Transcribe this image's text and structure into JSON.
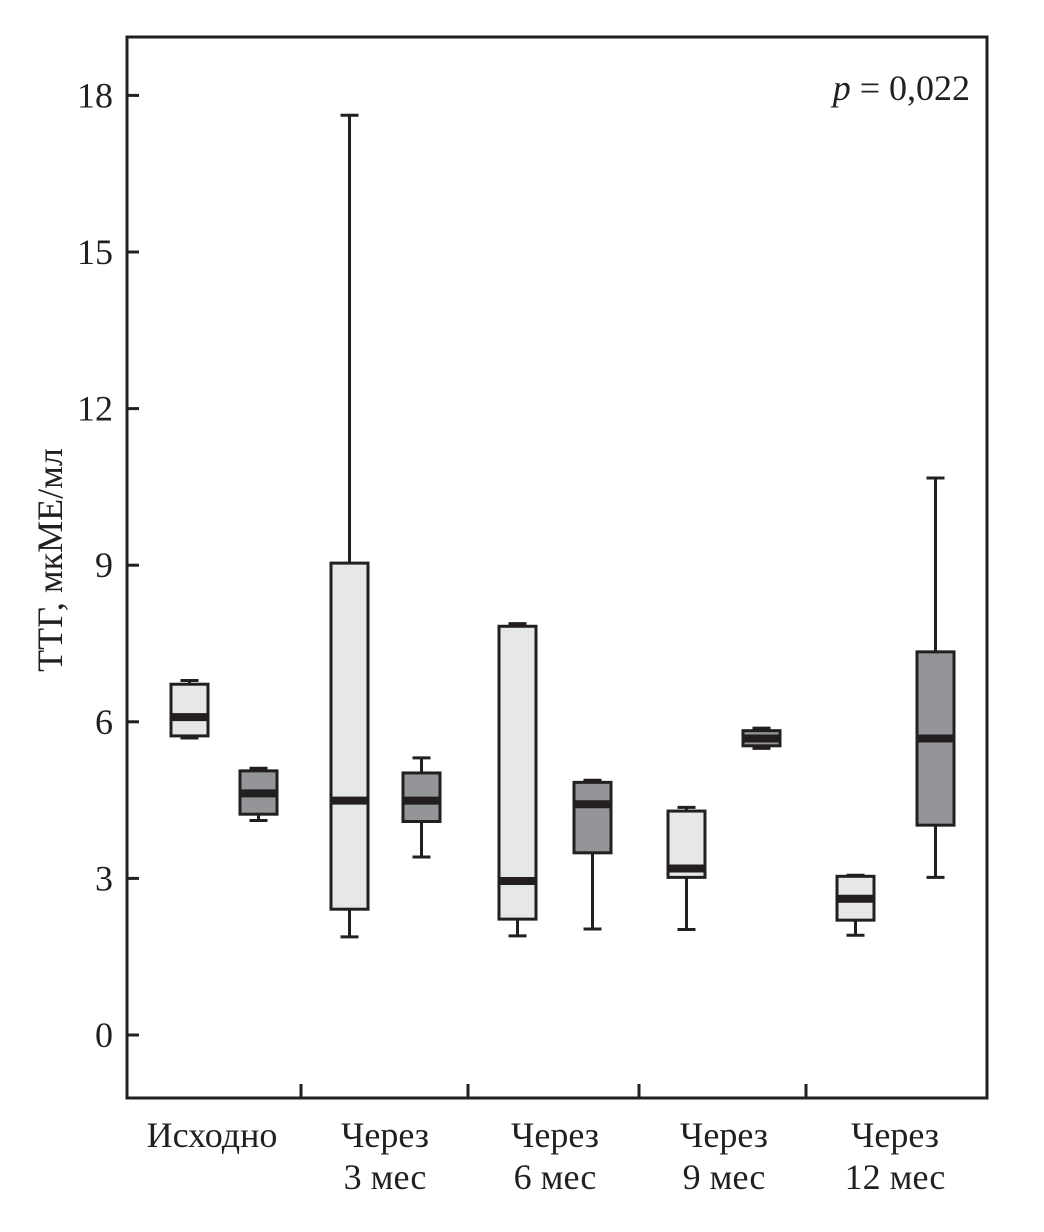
{
  "chart_data": {
    "type": "box",
    "title": "",
    "ylabel": "ТТГ, мкМЕ/мл",
    "xlabel": "",
    "ylim": [
      -1.2,
      18.9
    ],
    "yticks": [
      0,
      3,
      6,
      9,
      12,
      15,
      18
    ],
    "annotation": {
      "italic": "p",
      "text": " = 0,022"
    },
    "colors": {
      "series_a": "#e6e7e8",
      "series_b": "#939598",
      "stroke": "#231f20"
    },
    "categories": [
      {
        "line1": "Исходно",
        "line2": ""
      },
      {
        "line1": "Через",
        "line2": "3 мес"
      },
      {
        "line1": "Через",
        "line2": "6 мес"
      },
      {
        "line1": "Через",
        "line2": "9 мес"
      },
      {
        "line1": "Через",
        "line2": "12 мес"
      }
    ],
    "series": [
      {
        "name": "light",
        "boxes": [
          {
            "min": 5.69,
            "q1": 5.73,
            "median": 6.09,
            "q3": 6.72,
            "max": 6.79
          },
          {
            "min": 1.88,
            "q1": 2.41,
            "median": 4.49,
            "q3": 9.04,
            "max": 17.62
          },
          {
            "min": 1.9,
            "q1": 2.22,
            "median": 2.95,
            "q3": 7.83,
            "max": 7.88
          },
          {
            "min": 2.02,
            "q1": 3.02,
            "median": 3.19,
            "q3": 4.29,
            "max": 4.36
          },
          {
            "min": 1.91,
            "q1": 2.2,
            "median": 2.61,
            "q3": 3.04,
            "max": 3.06
          }
        ]
      },
      {
        "name": "dark",
        "boxes": [
          {
            "min": 4.11,
            "q1": 4.23,
            "median": 4.63,
            "q3": 5.06,
            "max": 5.11
          },
          {
            "min": 3.41,
            "q1": 4.09,
            "median": 4.49,
            "q3": 5.02,
            "max": 5.31
          },
          {
            "min": 2.03,
            "q1": 3.49,
            "median": 4.42,
            "q3": 4.84,
            "max": 4.88
          },
          {
            "min": 5.49,
            "q1": 5.54,
            "median": 5.68,
            "q3": 5.83,
            "max": 5.88
          },
          {
            "min": 3.02,
            "q1": 4.02,
            "median": 5.68,
            "q3": 7.34,
            "max": 10.67
          }
        ]
      }
    ]
  }
}
